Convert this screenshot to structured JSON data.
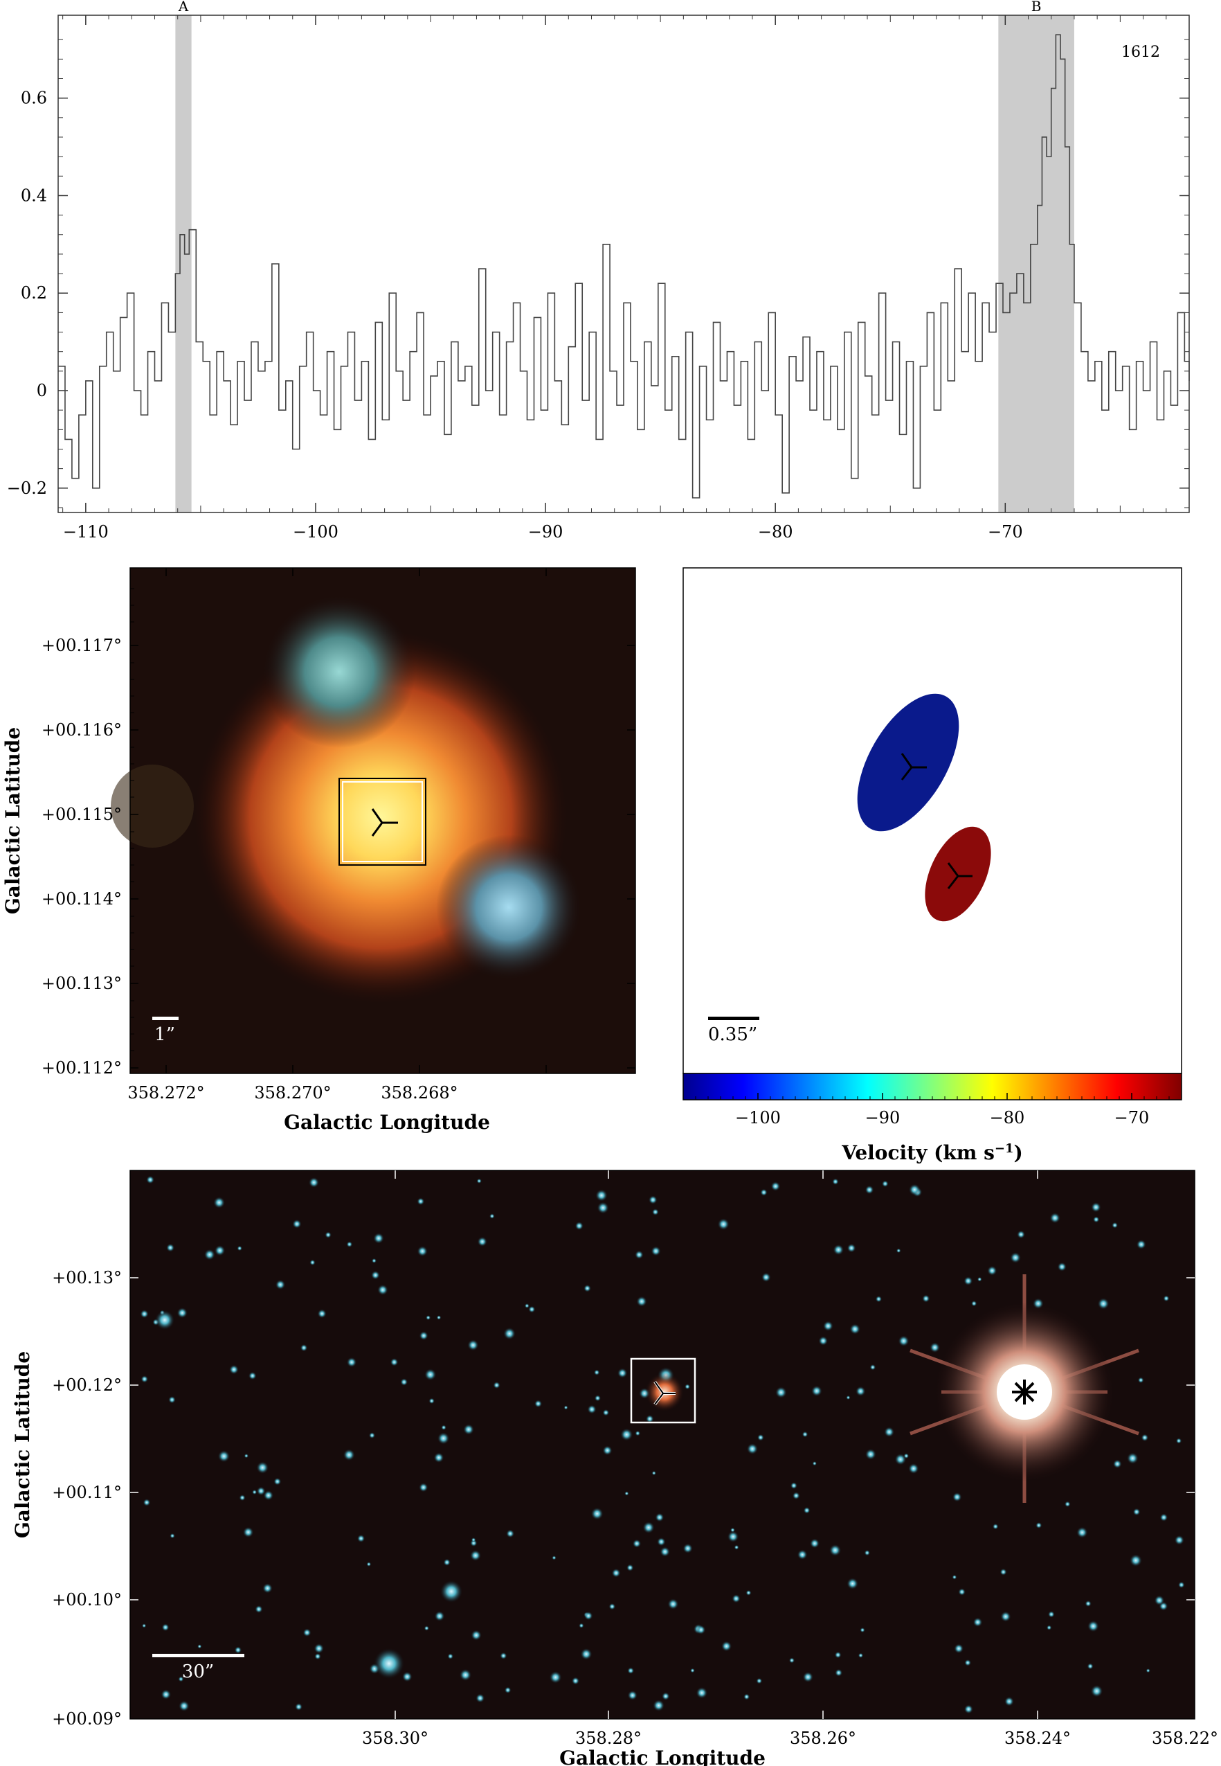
{
  "chart_data": [
    {
      "type": "line",
      "panel": "spectrum",
      "label": "1612",
      "regions": [
        {
          "label": "A",
          "x_start": -106.1,
          "x_end": -105.4
        },
        {
          "label": "B",
          "x_start": -70.3,
          "x_end": -67.0
        }
      ],
      "xlim": [
        -111.2,
        -62.0
      ],
      "ylim": [
        -0.25,
        0.77
      ],
      "x_ticks": [
        -110,
        -100,
        -90,
        -80,
        -70
      ],
      "x_tick_labels": [
        "−110",
        "−100",
        "−90",
        "−80",
        "−70"
      ],
      "y_ticks": [
        -0.2,
        0,
        0.2,
        0.4,
        0.6
      ],
      "y_tick_labels": [
        "−0.2",
        "0",
        "0.2",
        "0.4",
        "0.6"
      ],
      "spectrum_points": [
        [
          -111.2,
          0.05
        ],
        [
          -110.9,
          -0.1
        ],
        [
          -110.6,
          -0.18
        ],
        [
          -110.3,
          -0.05
        ],
        [
          -110.0,
          0.02
        ],
        [
          -109.7,
          -0.2
        ],
        [
          -109.4,
          0.05
        ],
        [
          -109.1,
          0.12
        ],
        [
          -108.8,
          0.04
        ],
        [
          -108.5,
          0.15
        ],
        [
          -108.2,
          0.2
        ],
        [
          -107.9,
          0.0
        ],
        [
          -107.6,
          -0.05
        ],
        [
          -107.3,
          0.08
        ],
        [
          -107.0,
          0.02
        ],
        [
          -106.7,
          0.18
        ],
        [
          -106.4,
          0.12
        ],
        [
          -106.1,
          0.24
        ],
        [
          -105.9,
          0.32
        ],
        [
          -105.7,
          0.28
        ],
        [
          -105.5,
          0.33
        ],
        [
          -105.2,
          0.1
        ],
        [
          -104.9,
          0.06
        ],
        [
          -104.6,
          -0.05
        ],
        [
          -104.3,
          0.08
        ],
        [
          -104.0,
          0.02
        ],
        [
          -103.7,
          -0.07
        ],
        [
          -103.4,
          0.06
        ],
        [
          -103.1,
          -0.02
        ],
        [
          -102.8,
          0.1
        ],
        [
          -102.5,
          0.04
        ],
        [
          -102.2,
          0.06
        ],
        [
          -101.9,
          0.26
        ],
        [
          -101.6,
          -0.04
        ],
        [
          -101.3,
          0.02
        ],
        [
          -101.0,
          -0.12
        ],
        [
          -100.7,
          0.05
        ],
        [
          -100.4,
          0.12
        ],
        [
          -100.1,
          0.0
        ],
        [
          -99.8,
          -0.05
        ],
        [
          -99.5,
          0.08
        ],
        [
          -99.2,
          -0.08
        ],
        [
          -98.9,
          0.05
        ],
        [
          -98.6,
          0.12
        ],
        [
          -98.3,
          -0.02
        ],
        [
          -98.0,
          0.06
        ],
        [
          -97.7,
          -0.1
        ],
        [
          -97.4,
          0.14
        ],
        [
          -97.1,
          -0.06
        ],
        [
          -96.8,
          0.2
        ],
        [
          -96.5,
          0.04
        ],
        [
          -96.2,
          -0.02
        ],
        [
          -95.9,
          0.08
        ],
        [
          -95.6,
          0.16
        ],
        [
          -95.3,
          -0.05
        ],
        [
          -95.0,
          0.03
        ],
        [
          -94.7,
          0.06
        ],
        [
          -94.4,
          -0.09
        ],
        [
          -94.1,
          0.1
        ],
        [
          -93.8,
          0.02
        ],
        [
          -93.5,
          0.05
        ],
        [
          -93.2,
          -0.03
        ],
        [
          -92.9,
          0.25
        ],
        [
          -92.6,
          0.0
        ],
        [
          -92.3,
          0.12
        ],
        [
          -92.0,
          -0.05
        ],
        [
          -91.7,
          0.1
        ],
        [
          -91.4,
          0.18
        ],
        [
          -91.1,
          0.04
        ],
        [
          -90.8,
          -0.06
        ],
        [
          -90.5,
          0.15
        ],
        [
          -90.2,
          -0.04
        ],
        [
          -89.9,
          0.2
        ],
        [
          -89.6,
          0.02
        ],
        [
          -89.3,
          -0.07
        ],
        [
          -89.0,
          0.09
        ],
        [
          -88.7,
          0.22
        ],
        [
          -88.4,
          -0.02
        ],
        [
          -88.1,
          0.12
        ],
        [
          -87.8,
          -0.1
        ],
        [
          -87.5,
          0.3
        ],
        [
          -87.2,
          0.04
        ],
        [
          -86.9,
          -0.03
        ],
        [
          -86.6,
          0.18
        ],
        [
          -86.3,
          0.06
        ],
        [
          -86.0,
          -0.08
        ],
        [
          -85.7,
          0.1
        ],
        [
          -85.4,
          0.01
        ],
        [
          -85.1,
          0.22
        ],
        [
          -84.8,
          -0.04
        ],
        [
          -84.5,
          0.07
        ],
        [
          -84.2,
          -0.1
        ],
        [
          -83.9,
          0.12
        ],
        [
          -83.6,
          -0.22
        ],
        [
          -83.3,
          0.05
        ],
        [
          -83.0,
          -0.06
        ],
        [
          -82.7,
          0.14
        ],
        [
          -82.4,
          0.02
        ],
        [
          -82.1,
          0.08
        ],
        [
          -81.8,
          -0.03
        ],
        [
          -81.5,
          0.06
        ],
        [
          -81.2,
          -0.1
        ],
        [
          -80.9,
          0.1
        ],
        [
          -80.6,
          0.0
        ],
        [
          -80.3,
          0.16
        ],
        [
          -80.0,
          -0.05
        ],
        [
          -79.7,
          -0.21
        ],
        [
          -79.4,
          0.07
        ],
        [
          -79.1,
          0.02
        ],
        [
          -78.8,
          0.11
        ],
        [
          -78.5,
          -0.04
        ],
        [
          -78.2,
          0.08
        ],
        [
          -77.9,
          -0.06
        ],
        [
          -77.6,
          0.05
        ],
        [
          -77.3,
          -0.08
        ],
        [
          -77.0,
          0.12
        ],
        [
          -76.7,
          -0.18
        ],
        [
          -76.4,
          0.14
        ],
        [
          -76.1,
          0.03
        ],
        [
          -75.8,
          -0.05
        ],
        [
          -75.5,
          0.2
        ],
        [
          -75.2,
          -0.02
        ],
        [
          -74.9,
          0.1
        ],
        [
          -74.6,
          -0.09
        ],
        [
          -74.3,
          0.06
        ],
        [
          -74.0,
          -0.2
        ],
        [
          -73.7,
          0.05
        ],
        [
          -73.4,
          0.16
        ],
        [
          -73.1,
          -0.04
        ],
        [
          -72.8,
          0.18
        ],
        [
          -72.5,
          0.02
        ],
        [
          -72.2,
          0.25
        ],
        [
          -71.9,
          0.08
        ],
        [
          -71.6,
          0.2
        ],
        [
          -71.3,
          0.06
        ],
        [
          -71.0,
          0.18
        ],
        [
          -70.7,
          0.12
        ],
        [
          -70.4,
          0.22
        ],
        [
          -70.1,
          0.16
        ],
        [
          -69.8,
          0.2
        ],
        [
          -69.5,
          0.24
        ],
        [
          -69.2,
          0.18
        ],
        [
          -68.9,
          0.3
        ],
        [
          -68.6,
          0.38
        ],
        [
          -68.4,
          0.52
        ],
        [
          -68.2,
          0.48
        ],
        [
          -68.0,
          0.62
        ],
        [
          -67.8,
          0.73
        ],
        [
          -67.6,
          0.68
        ],
        [
          -67.4,
          0.5
        ],
        [
          -67.2,
          0.3
        ],
        [
          -67.0,
          0.18
        ],
        [
          -66.7,
          0.08
        ],
        [
          -66.4,
          0.02
        ],
        [
          -66.1,
          0.06
        ],
        [
          -65.8,
          -0.04
        ],
        [
          -65.5,
          0.08
        ],
        [
          -65.2,
          0.0
        ],
        [
          -64.9,
          0.05
        ],
        [
          -64.6,
          -0.08
        ],
        [
          -64.3,
          0.06
        ],
        [
          -64.0,
          0.0
        ],
        [
          -63.7,
          0.1
        ],
        [
          -63.4,
          -0.06
        ],
        [
          -63.1,
          0.04
        ],
        [
          -62.8,
          -0.03
        ],
        [
          -62.5,
          0.16
        ],
        [
          -62.2,
          0.06
        ],
        [
          -62.0,
          0.02
        ]
      ]
    },
    {
      "type": "image",
      "panel": "zoom-image",
      "ylabel": "Galactic Latitude",
      "xlabel": "Galactic Longitude",
      "x_tick_labels": [
        "358.272°",
        "358.270°",
        "358.268°"
      ],
      "y_tick_labels": [
        "+00.117°",
        "+00.116°",
        "+00.115°",
        "+00.114°",
        "+00.113°",
        "+00.112°"
      ],
      "scalebar_label": "1”"
    },
    {
      "type": "scatter",
      "panel": "maser-spots",
      "scalebar_label": "0.35”",
      "colorbar_label": "Velocity (km s",
      "colorbar_label_sup": "−1",
      "colorbar_label_end": ")",
      "colorbar_range": [
        -106,
        -66
      ],
      "colorbar_tick_labels": [
        "−100",
        "−90",
        "−80",
        "−70"
      ],
      "spots": [
        {
          "velocity": -104,
          "color": "#0a1a8c"
        },
        {
          "velocity": -67,
          "color": "#8b0a0a"
        }
      ]
    },
    {
      "type": "image",
      "panel": "wide-image",
      "ylabel": "Galactic Latitude",
      "xlabel": "Galactic Longitude",
      "x_tick_labels": [
        "358.30°",
        "358.28°",
        "358.26°",
        "358.24°",
        "358.22°"
      ],
      "y_tick_labels": [
        "+00.13°",
        "+00.12°",
        "+00.11°",
        "+00.10°",
        "+00.09°"
      ],
      "scalebar_label": "30”"
    }
  ]
}
